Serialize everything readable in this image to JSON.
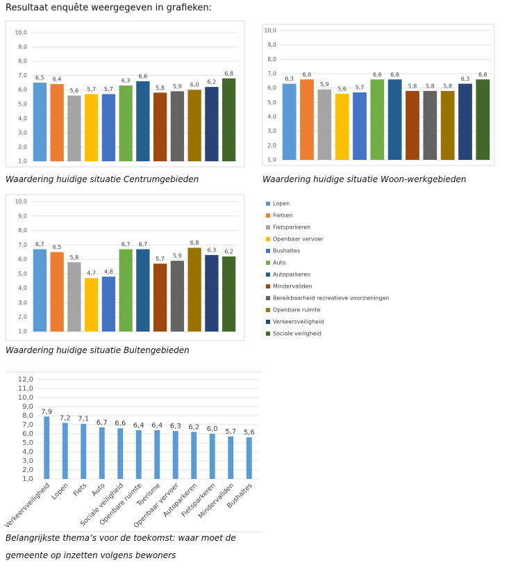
{
  "heading": "Resultaat enquête weergegeven in grafieken:",
  "legend": [
    {
      "name": "Lopen",
      "color": "#5b9bd5"
    },
    {
      "name": "Fietsen",
      "color": "#ed7d31"
    },
    {
      "name": "Fietsparkeren",
      "color": "#a5a5a5"
    },
    {
      "name": "Openbaar vervoer",
      "color": "#ffc000"
    },
    {
      "name": "Bushaltes",
      "color": "#4472c4"
    },
    {
      "name": "Auto",
      "color": "#70ad47"
    },
    {
      "name": "Autoparkeren",
      "color": "#255e91"
    },
    {
      "name": "Mindervaliden",
      "color": "#9e480e"
    },
    {
      "name": "Bereikbaarheid recreatieve voorzieningen",
      "color": "#636363"
    },
    {
      "name": "Openbare ruimte",
      "color": "#997300"
    },
    {
      "name": "Verkeersveiligheid",
      "color": "#264478"
    },
    {
      "name": "Sociale veiligheid",
      "color": "#43682b"
    }
  ],
  "chart_data": [
    {
      "type": "bar",
      "title": "Waardering huidige situatie Centrumgebieden",
      "values": [
        6.5,
        6.4,
        5.6,
        5.7,
        5.7,
        6.3,
        6.6,
        5.8,
        5.9,
        6.0,
        6.2,
        6.8
      ],
      "value_labels": [
        "6,5",
        "6,4",
        "5,6",
        "5,7",
        "5,7",
        "6,3",
        "6,6",
        "5,8",
        "5,9",
        "6,0",
        "6,2",
        "6,8"
      ],
      "ylim": [
        1,
        10
      ],
      "yticks": [
        {
          "value": 1,
          "label": "1,0"
        },
        {
          "value": 2,
          "label": "2,0"
        },
        {
          "value": 3,
          "label": "3,0"
        },
        {
          "value": 4,
          "label": "4,0"
        },
        {
          "value": 5,
          "label": "5,0"
        },
        {
          "value": 6,
          "label": "6,0"
        },
        {
          "value": 7,
          "label": "7,0"
        },
        {
          "value": 8,
          "label": "8,0"
        },
        {
          "value": 9,
          "label": "9,0"
        },
        {
          "value": 10,
          "label": "10,0"
        }
      ],
      "grid": true
    },
    {
      "type": "bar",
      "title": "Waardering huidige situatie Woon-werkgebieden",
      "values": [
        6.3,
        6.6,
        5.9,
        5.6,
        5.7,
        6.6,
        6.6,
        5.8,
        5.8,
        5.8,
        6.3,
        6.6
      ],
      "value_labels": [
        "6,3",
        "6,6",
        "5,9",
        "5,6",
        "5,7",
        "6,6",
        "6,6",
        "5,8",
        "5,8",
        "5,8",
        "6,3",
        "6,6"
      ],
      "ylim": [
        1,
        10
      ],
      "yticks": [
        {
          "value": 1,
          "label": "1,0"
        },
        {
          "value": 2,
          "label": "2,0"
        },
        {
          "value": 3,
          "label": "3,0"
        },
        {
          "value": 4,
          "label": "4,0"
        },
        {
          "value": 5,
          "label": "5,0"
        },
        {
          "value": 6,
          "label": "6,0"
        },
        {
          "value": 7,
          "label": "7,0"
        },
        {
          "value": 8,
          "label": "8,0"
        },
        {
          "value": 9,
          "label": "9,0"
        },
        {
          "value": 10,
          "label": "10,0"
        }
      ],
      "grid": true
    },
    {
      "type": "bar",
      "title": "Waardering huidige situatie Buitengebieden",
      "values": [
        6.7,
        6.5,
        5.8,
        4.7,
        4.8,
        6.7,
        6.7,
        5.7,
        5.9,
        6.8,
        6.3,
        6.2
      ],
      "value_labels": [
        "6,7",
        "6,5",
        "5,8",
        "4,7",
        "4,8",
        "6,7",
        "6,7",
        "5,7",
        "5,9",
        "6,8",
        "6,3",
        "6,2"
      ],
      "ylim": [
        1,
        10
      ],
      "yticks": [
        {
          "value": 1,
          "label": "1,0"
        },
        {
          "value": 2,
          "label": "2,0"
        },
        {
          "value": 3,
          "label": "3,0"
        },
        {
          "value": 4,
          "label": "4,0"
        },
        {
          "value": 5,
          "label": "5,0"
        },
        {
          "value": 6,
          "label": "6,0"
        },
        {
          "value": 7,
          "label": "7,0"
        },
        {
          "value": 8,
          "label": "8,0"
        },
        {
          "value": 9,
          "label": "9,0"
        },
        {
          "value": 10,
          "label": "10,0"
        }
      ],
      "grid": true
    },
    {
      "type": "bar",
      "title": "Belangrijkste thema’s voor de toekomst: waar moet de gemeente op inzetten volgens bewoners",
      "categories": [
        "Verkeersveiligheid",
        "Lopen",
        "Fiets",
        "Auto",
        "Sociale veiligheid",
        "Openbare ruimte",
        "Toerisme",
        "Openbaar vervoer",
        "Autoparkeren",
        "Fietsparkeren",
        "Mindervaliden",
        "Bushaltes"
      ],
      "values": [
        7.9,
        7.2,
        7.1,
        6.7,
        6.6,
        6.4,
        6.4,
        6.3,
        6.2,
        6.0,
        5.7,
        5.6
      ],
      "value_labels": [
        "7,9",
        "7,2",
        "7,1",
        "6,7",
        "6,6",
        "6,4",
        "6,4",
        "6,3",
        "6,2",
        "6,0",
        "5,7",
        "5,6"
      ],
      "color": "#5b9bd5",
      "ylim": [
        1,
        12
      ],
      "yticks": [
        {
          "value": 1,
          "label": "1,0"
        },
        {
          "value": 2,
          "label": "2,0"
        },
        {
          "value": 3,
          "label": "3,0"
        },
        {
          "value": 4,
          "label": "4,0"
        },
        {
          "value": 5,
          "label": "5,0"
        },
        {
          "value": 6,
          "label": "6,0"
        },
        {
          "value": 7,
          "label": "7,0"
        },
        {
          "value": 8,
          "label": "8,0"
        },
        {
          "value": 9,
          "label": "9,0"
        },
        {
          "value": 10,
          "label": "10,0"
        },
        {
          "value": 11,
          "label": "11,0"
        },
        {
          "value": 12,
          "label": "12,0"
        }
      ],
      "grid": true
    }
  ]
}
